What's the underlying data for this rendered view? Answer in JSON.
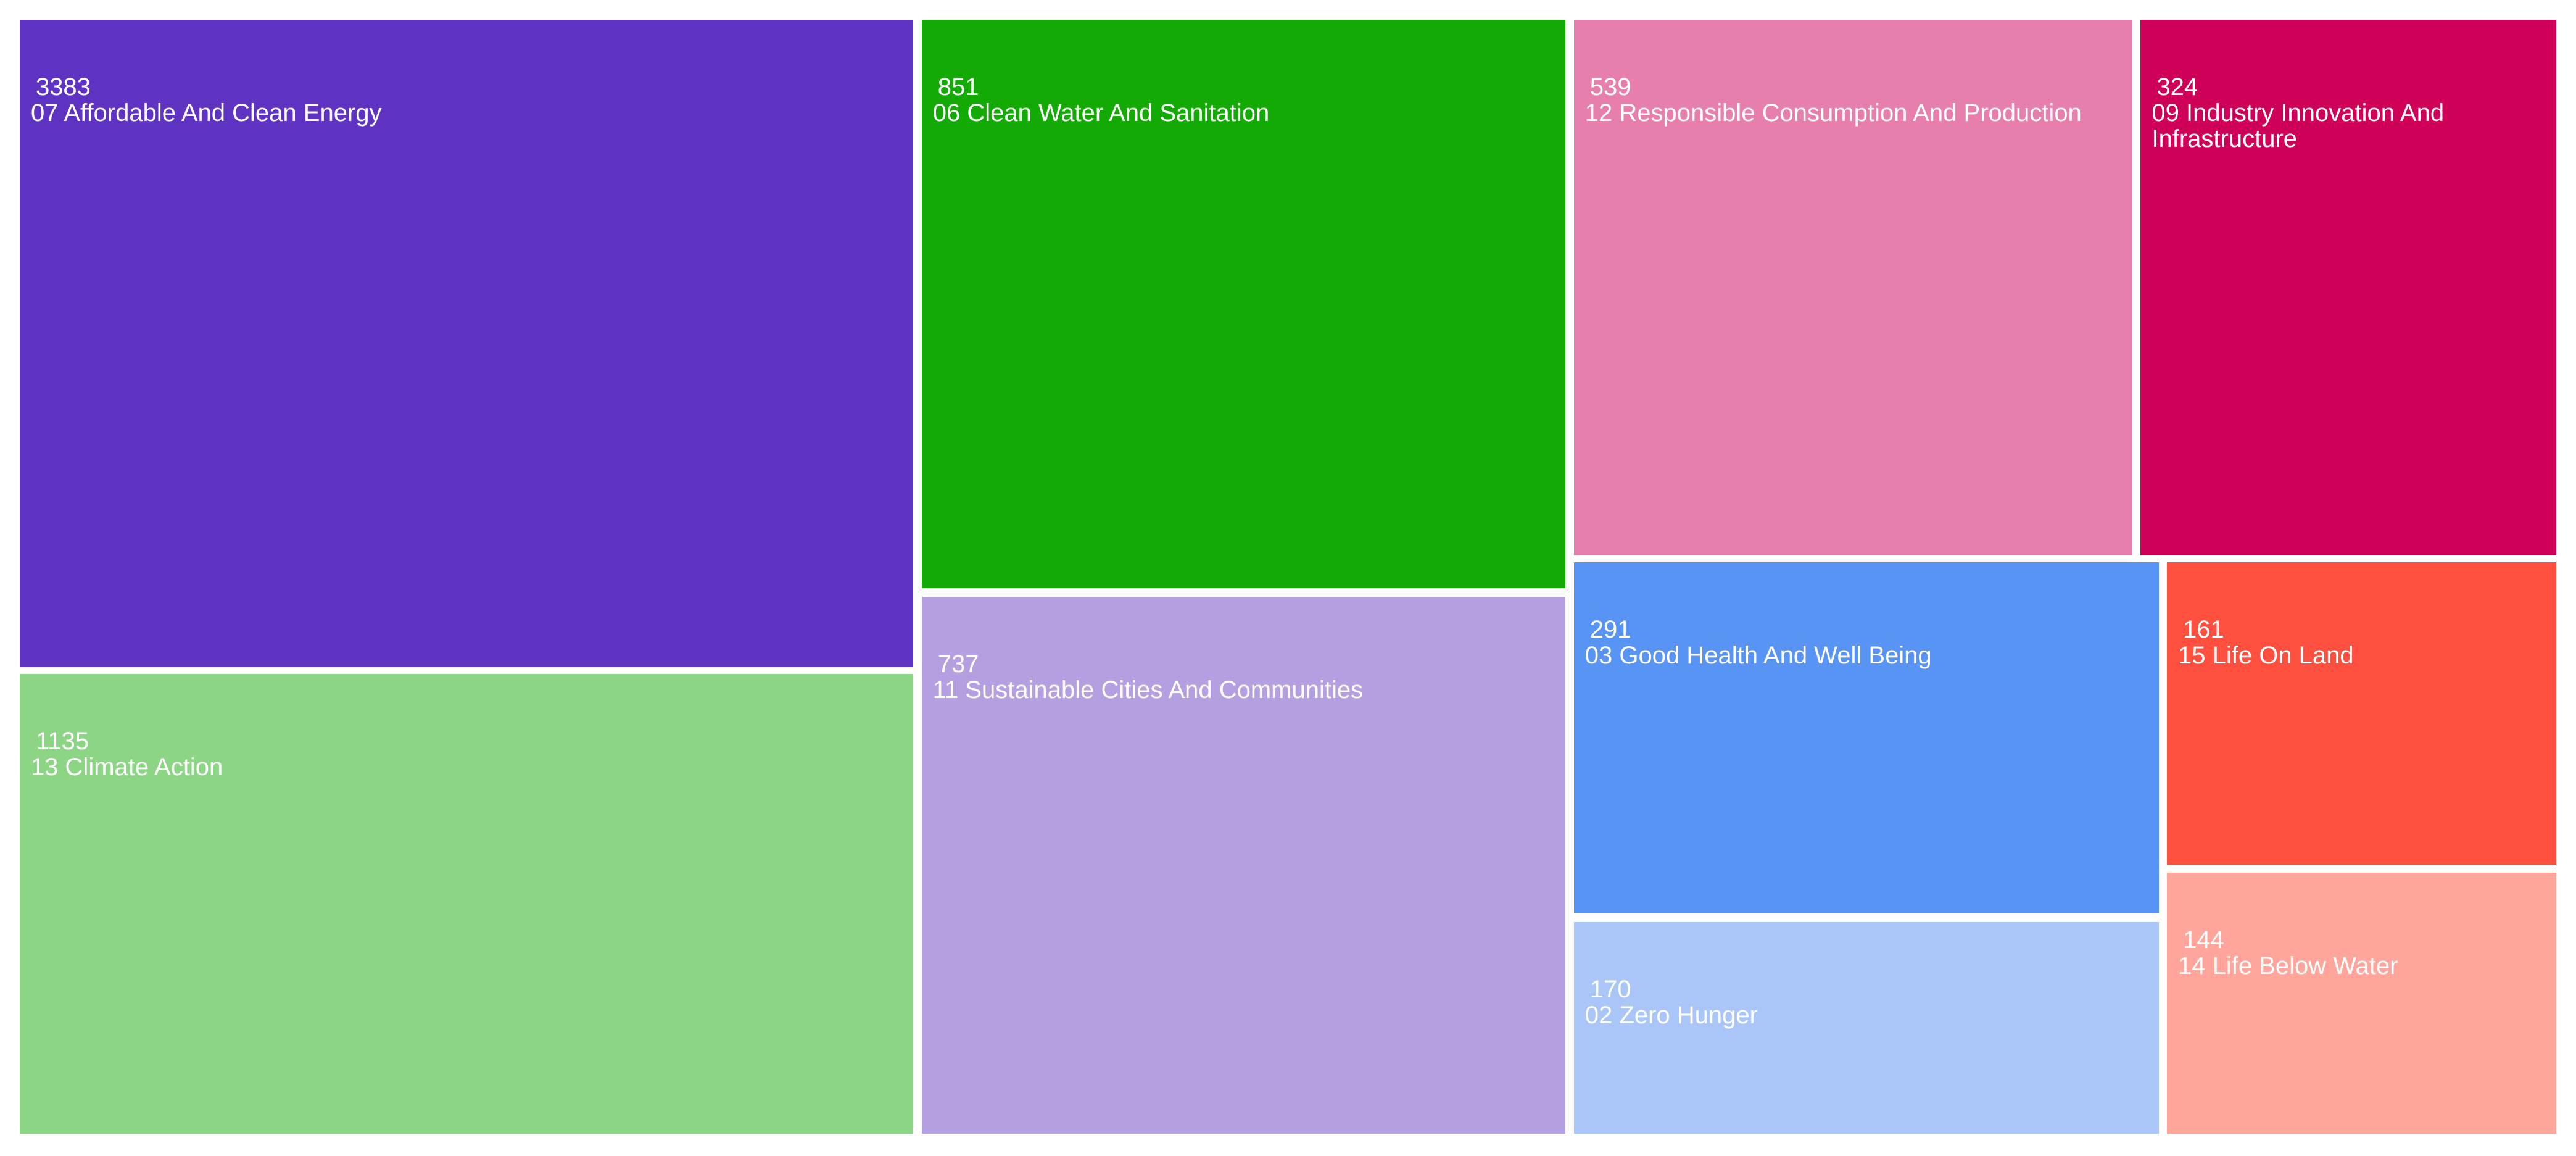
{
  "chart_data": {
    "type": "treemap",
    "categories": [
      "07 Affordable And Clean Energy",
      "13 Climate Action",
      "06 Clean Water And Sanitation",
      "11 Sustainable Cities And Communities",
      "12 Responsible Consumption And Production",
      "09 Industry Innovation And Infrastructure",
      "03 Good Health And Well Being",
      "02 Zero Hunger",
      "15 Life On Land",
      "14 Life Below Water"
    ],
    "values": [
      3383,
      1135,
      851,
      737,
      539,
      324,
      291,
      170,
      161,
      144
    ],
    "colors": [
      "#5e33c1",
      "#8cd584",
      "#14aa05",
      "#b4a0e0",
      "#e67fab",
      "#cf0057",
      "#5894f4",
      "#aac6f8",
      "#ff4f3f",
      "#ffa59b"
    ]
  }
}
